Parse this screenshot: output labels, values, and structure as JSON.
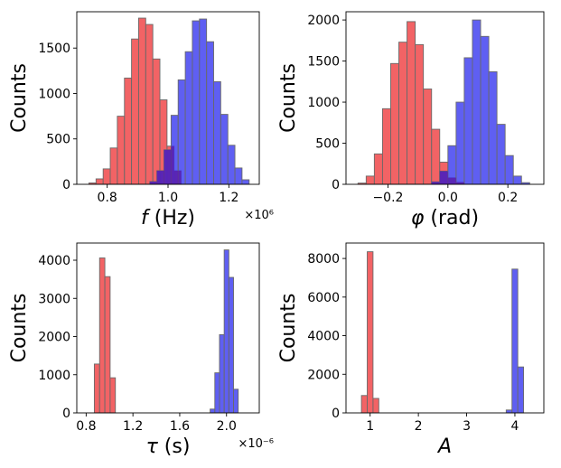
{
  "colors": {
    "red": "#f0484a",
    "blue": "#4343f0",
    "overlap": "#5a1aa8",
    "edge": "#6a6a6a"
  },
  "chart_data": [
    {
      "type": "histogram",
      "xlabel": "f (Hz)",
      "xlabel_math": "f",
      "xlabel_unit": "(Hz)",
      "ylabel": "Counts",
      "x_multiplier": "×10⁶",
      "xlim": [
        0.7,
        1.3
      ],
      "ylim": [
        0,
        1900
      ],
      "xticks": [
        0.8,
        1.0,
        1.2
      ],
      "xtick_labels": [
        "0.8",
        "1.0",
        "1.2"
      ],
      "yticks": [
        0,
        500,
        1000,
        1500
      ],
      "ytick_labels": [
        "0",
        "500",
        "1000",
        "1500"
      ],
      "series": [
        {
          "name": "red",
          "color": "red",
          "bin_edges": [
            0.74,
            0.7633,
            0.7867,
            0.81,
            0.8333,
            0.8567,
            0.88,
            0.9033,
            0.9267,
            0.95,
            0.9733,
            0.9967,
            1.02,
            1.0433
          ],
          "counts": [
            15,
            60,
            170,
            400,
            750,
            1170,
            1600,
            1830,
            1760,
            1380,
            930,
            420,
            150
          ]
        },
        {
          "name": "blue",
          "color": "blue",
          "bin_edges": [
            0.94,
            0.9633,
            0.9867,
            1.01,
            1.0333,
            1.0567,
            1.08,
            1.1033,
            1.1267,
            1.15,
            1.1733,
            1.1967,
            1.22,
            1.2433,
            1.2667
          ],
          "counts": [
            30,
            150,
            380,
            760,
            1150,
            1460,
            1800,
            1820,
            1570,
            1130,
            770,
            430,
            180,
            50
          ]
        }
      ]
    },
    {
      "type": "histogram",
      "xlabel": "φ (rad)",
      "xlabel_math": "φ",
      "xlabel_unit": "(rad)",
      "ylabel": "Counts",
      "xlim": [
        -0.34,
        0.32
      ],
      "ylim": [
        0,
        2100
      ],
      "xticks": [
        -0.2,
        0.0,
        0.2
      ],
      "xtick_labels": [
        "−0.2",
        "0.0",
        "0.2"
      ],
      "yticks": [
        0,
        500,
        1000,
        1500,
        2000
      ],
      "ytick_labels": [
        "0",
        "500",
        "1000",
        "1500",
        "2000"
      ],
      "series": [
        {
          "name": "red",
          "color": "red",
          "bin_edges": [
            -0.3,
            -0.2727,
            -0.2455,
            -0.2182,
            -0.1909,
            -0.1636,
            -0.1364,
            -0.1091,
            -0.0818,
            -0.0545,
            -0.0273,
            0.0,
            0.0273,
            0.0545
          ],
          "counts": [
            15,
            100,
            370,
            920,
            1470,
            1730,
            1980,
            1700,
            1160,
            670,
            270,
            80,
            25
          ]
        },
        {
          "name": "blue",
          "color": "blue",
          "bin_edges": [
            -0.0545,
            -0.0273,
            0.0,
            0.0273,
            0.0545,
            0.0818,
            0.1091,
            0.1364,
            0.1636,
            0.1909,
            0.2182,
            0.2455,
            0.2727
          ],
          "counts": [
            30,
            160,
            470,
            1000,
            1540,
            2000,
            1800,
            1370,
            730,
            350,
            100,
            20
          ]
        }
      ]
    },
    {
      "type": "histogram",
      "xlabel": "τ (s)",
      "xlabel_math": "τ",
      "xlabel_unit": "(s)",
      "ylabel": "Counts",
      "x_multiplier": "×10⁻⁶",
      "xlim": [
        0.72,
        2.28
      ],
      "ylim": [
        0,
        4450
      ],
      "xticks": [
        0.8,
        1.2,
        1.6,
        2.0
      ],
      "xtick_labels": [
        "0.8",
        "1.2",
        "1.6",
        "2.0"
      ],
      "yticks": [
        0,
        1000,
        2000,
        3000,
        4000
      ],
      "ytick_labels": [
        "0",
        "1000",
        "2000",
        "3000",
        "4000"
      ],
      "series": [
        {
          "name": "red",
          "color": "red",
          "bin_edges": [
            0.87,
            0.915,
            0.96,
            1.005,
            1.05,
            1.095
          ],
          "counts": [
            1280,
            4060,
            3570,
            920,
            0
          ]
        },
        {
          "name": "blue",
          "color": "blue",
          "bin_edges": [
            1.86,
            1.9,
            1.94,
            1.98,
            2.02,
            2.06,
            2.1,
            2.14
          ],
          "counts": [
            100,
            1050,
            2050,
            4270,
            3550,
            620,
            0
          ]
        }
      ]
    },
    {
      "type": "histogram",
      "xlabel": "A",
      "xlabel_math": "A",
      "xlabel_unit": "",
      "ylabel": "Counts",
      "xlim": [
        0.5,
        4.6
      ],
      "ylim": [
        0,
        8800
      ],
      "xticks": [
        1,
        2,
        3,
        4
      ],
      "xtick_labels": [
        "1",
        "2",
        "3",
        "4"
      ],
      "yticks": [
        0,
        2000,
        4000,
        6000,
        8000
      ],
      "ytick_labels": [
        "0",
        "2000",
        "4000",
        "6000",
        "8000"
      ],
      "series": [
        {
          "name": "red",
          "color": "red",
          "bin_edges": [
            0.82,
            0.94,
            1.06,
            1.18
          ],
          "counts": [
            900,
            8350,
            750
          ]
        },
        {
          "name": "blue",
          "color": "blue",
          "bin_edges": [
            3.82,
            3.94,
            4.06,
            4.18
          ],
          "counts": [
            150,
            7450,
            2380
          ]
        }
      ]
    }
  ]
}
